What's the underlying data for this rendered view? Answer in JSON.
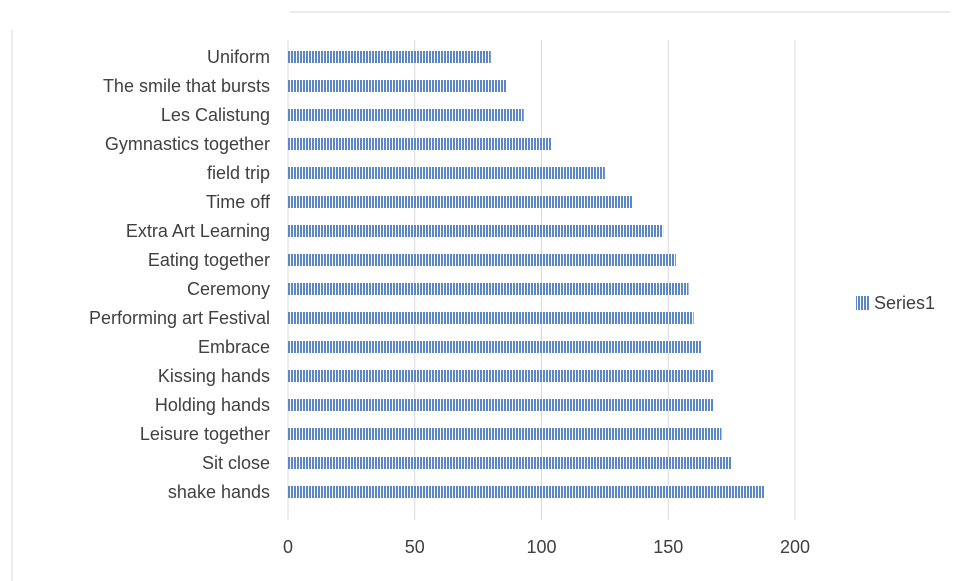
{
  "chart_data": {
    "type": "bar",
    "orientation": "horizontal",
    "categories": [
      "shake hands",
      "Sit close",
      "Leisure together",
      "Holding hands",
      "Kissing hands",
      "Embrace",
      "Performing art Festival",
      "Ceremony",
      "Eating together",
      "Extra Art Learning",
      "Time off",
      "field trip",
      "Gymnastics together",
      "Les Calistung",
      "The smile that bursts",
      "Uniform"
    ],
    "series": [
      {
        "name": "Series1",
        "values": [
          188,
          175,
          171,
          168,
          168,
          163,
          160,
          158,
          153,
          148,
          136,
          125,
          104,
          93,
          86,
          80
        ],
        "color": "#5B87C6"
      }
    ],
    "xlim": [
      0,
      200
    ],
    "xticks": [
      0,
      50,
      100,
      150,
      200
    ],
    "xtick_labels": [
      "0",
      "50",
      "100",
      "150",
      "200"
    ],
    "grid": "vertical",
    "legend": "right",
    "title": "",
    "xlabel": "",
    "ylabel": ""
  },
  "colors": {
    "bar": "#5B87C6",
    "gridline": "#d9d9d9",
    "text": "#404040",
    "frame": "#d9d9d9"
  }
}
